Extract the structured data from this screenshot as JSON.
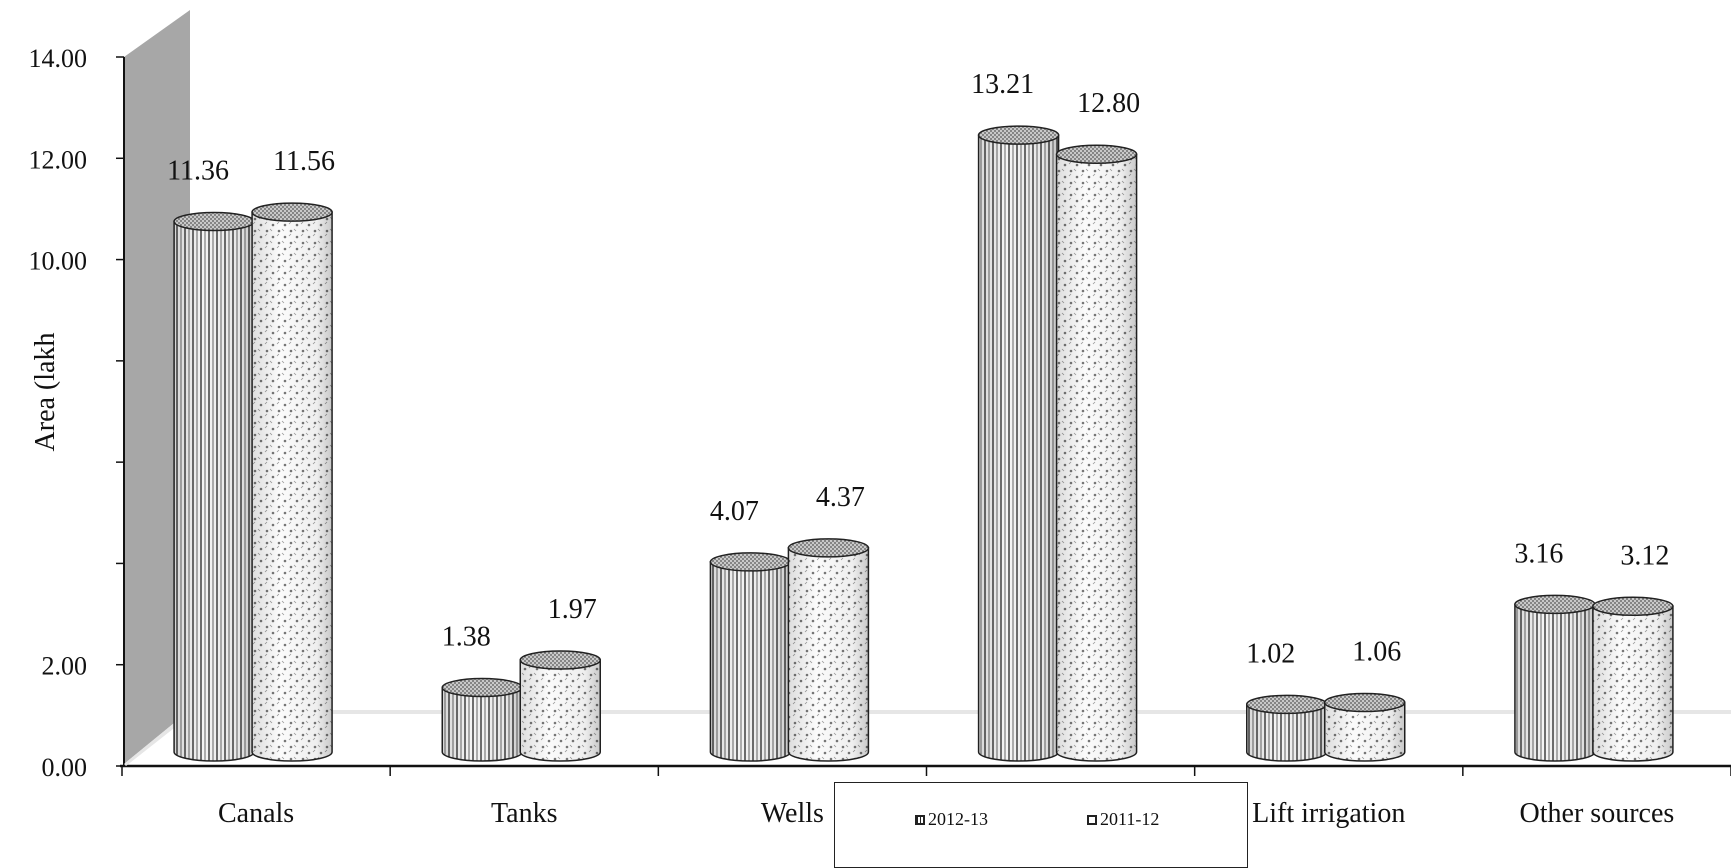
{
  "chart_data": {
    "type": "bar",
    "title": "",
    "xlabel": "",
    "ylabel": "Area (lakh",
    "ylim": [
      0,
      14
    ],
    "yticks": [
      "0.00",
      "2.00",
      "",
      "",
      "",
      "10.00",
      "12.00",
      "14.00"
    ],
    "categories": [
      "Canals",
      "Tanks",
      "Wells",
      "",
      "Lift irrigation",
      "Other sources"
    ],
    "series": [
      {
        "name": "2012-13",
        "values": [
          11.36,
          1.38,
          4.07,
          13.21,
          1.02,
          3.16
        ],
        "labels": [
          "11.36",
          "1.38",
          "4.07",
          "13.21",
          "1.02",
          "3.16"
        ]
      },
      {
        "name": "2011-12",
        "values": [
          11.56,
          1.97,
          4.37,
          12.8,
          1.06,
          3.12
        ],
        "labels": [
          "11.56",
          "1.97",
          "4.37",
          "12.80",
          "1.06",
          "3.12"
        ]
      }
    ],
    "style": "3d-cylinder",
    "legend_position": "bottom-center"
  }
}
